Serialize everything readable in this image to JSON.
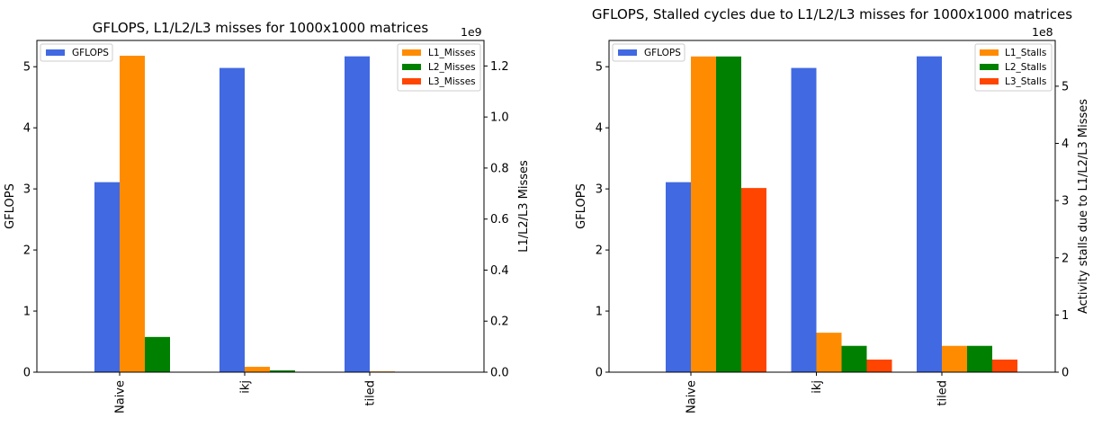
{
  "colors": {
    "GFLOPS": "#4169E1",
    "L1": "#FF8C00",
    "L2": "#008000",
    "L3": "#FF4500"
  },
  "chart_data": [
    {
      "type": "bar",
      "title": "GFLOPS, L1/L2/L3 misses for 1000x1000 matrices",
      "categories": [
        "Naive",
        "ikj",
        "tiled"
      ],
      "left_axis": {
        "label": "GFLOPS",
        "ylim": [
          0,
          5.43
        ],
        "ticks": [
          0,
          1,
          2,
          3,
          4,
          5
        ],
        "tick_labels": [
          "0",
          "1",
          "2",
          "3",
          "4",
          "5"
        ]
      },
      "right_axis": {
        "label": "L1/L2/L3 Misses",
        "offset_text": "1e9",
        "ylim": [
          0,
          1.3
        ],
        "ticks": [
          0,
          0.2,
          0.4,
          0.6,
          0.8,
          1.0,
          1.2
        ],
        "tick_labels": [
          "0.0",
          "0.2",
          "0.4",
          "0.6",
          "0.8",
          "1.0",
          "1.2"
        ]
      },
      "left_series": [
        {
          "name": "GFLOPS",
          "values": [
            3.11,
            4.98,
            5.17
          ]
        }
      ],
      "right_series": [
        {
          "name": "L1_Misses",
          "values": [
            1.24,
            0.021,
            0.003
          ]
        },
        {
          "name": "L2_Misses",
          "values": [
            0.138,
            0.007,
            0.0
          ]
        },
        {
          "name": "L3_Misses",
          "values": [
            0.0,
            0.0,
            0.0
          ]
        }
      ],
      "legend_left": {
        "position": "upper-left",
        "entries": [
          "GFLOPS"
        ]
      },
      "legend_right": {
        "position": "upper-right",
        "entries": [
          "L1_Misses",
          "L2_Misses",
          "L3_Misses"
        ]
      }
    },
    {
      "type": "bar",
      "title": "GFLOPS, Stalled cycles due to L1/L2/L3 misses for 1000x1000 matrices",
      "categories": [
        "Naive",
        "ikj",
        "tiled"
      ],
      "left_axis": {
        "label": "GFLOPS",
        "ylim": [
          0,
          5.43
        ],
        "ticks": [
          0,
          1,
          2,
          3,
          4,
          5
        ],
        "tick_labels": [
          "0",
          "1",
          "2",
          "3",
          "4",
          "5"
        ]
      },
      "right_axis": {
        "label": "Activity stalls due to L1/L2/L3 Misses",
        "offset_text": "1e8",
        "ylim": [
          0,
          5.8
        ],
        "ticks": [
          0,
          1,
          2,
          3,
          4,
          5
        ],
        "tick_labels": [
          "0",
          "1",
          "2",
          "3",
          "4",
          "5"
        ]
      },
      "left_series": [
        {
          "name": "GFLOPS",
          "values": [
            3.11,
            4.98,
            5.17
          ]
        }
      ],
      "right_series": [
        {
          "name": "L1_Stalls",
          "values": [
            5.52,
            0.69,
            0.46
          ]
        },
        {
          "name": "L2_Stalls",
          "values": [
            5.52,
            0.46,
            0.46
          ]
        },
        {
          "name": "L3_Stalls",
          "values": [
            3.22,
            0.22,
            0.22
          ]
        }
      ],
      "legend_left": {
        "position": "upper-left",
        "entries": [
          "GFLOPS"
        ]
      },
      "legend_right": {
        "position": "upper-right",
        "entries": [
          "L1_Stalls",
          "L2_Stalls",
          "L3_Stalls"
        ]
      }
    }
  ]
}
